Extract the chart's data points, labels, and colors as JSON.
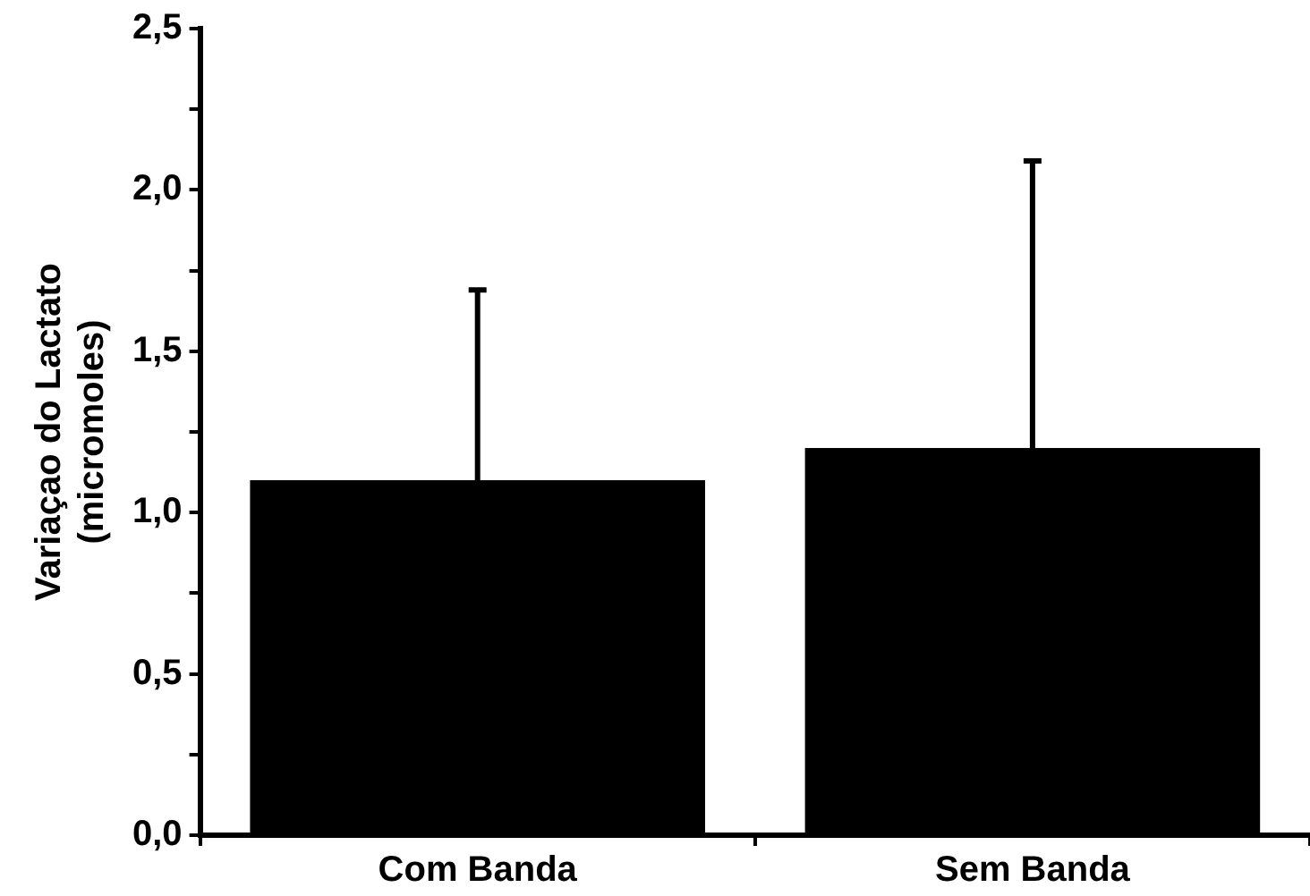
{
  "chart_data": {
    "type": "bar",
    "ylabel": "Variaçao do Lactato\n(micromoles)",
    "categories": [
      "Com Banda",
      "Sem Banda"
    ],
    "values": [
      1.1,
      1.2
    ],
    "errors": [
      [
        1.1,
        1.69
      ],
      [
        1.2,
        2.09
      ]
    ],
    "color": "#000000",
    "ylim": [
      0,
      2.5
    ],
    "yticks": [
      {
        "value": 0,
        "label": "0,0"
      },
      {
        "value": 0.25,
        "label": null
      },
      {
        "value": 0.5,
        "label": "0,5"
      },
      {
        "value": 0.75,
        "label": null
      },
      {
        "value": 1,
        "label": "1,0"
      },
      {
        "value": 1.25,
        "label": null
      },
      {
        "value": 1.5,
        "label": "1,5"
      },
      {
        "value": 1.75,
        "label": null
      },
      {
        "value": 2,
        "label": "2,0"
      },
      {
        "value": 2.25,
        "label": null
      },
      {
        "value": 2.5,
        "label": "2,5"
      }
    ],
    "grid": false,
    "legend": false
  }
}
